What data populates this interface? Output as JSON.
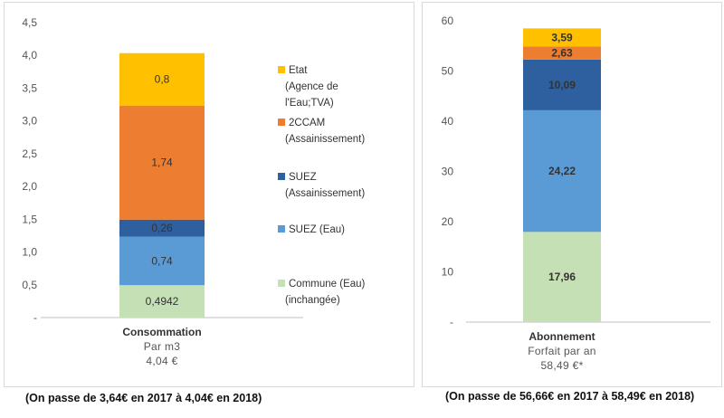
{
  "chart_data": [
    {
      "type": "bar",
      "stacked": true,
      "categories": [
        "Consommation"
      ],
      "category_subtitle": [
        "Par m3",
        "4,04 €"
      ],
      "ylim": [
        0,
        4.5
      ],
      "yticks": [
        "-",
        "0,5",
        "1,0",
        "1,5",
        "2,0",
        "2,5",
        "3,0",
        "3,5",
        "4,0",
        "4,5"
      ],
      "grid": false,
      "legend_position": "right",
      "series": [
        {
          "name": "Commune (Eau) (inchangée)",
          "legend_lines": [
            "Commune (Eau)",
            "(inchangée)"
          ],
          "values": [
            0.4942
          ],
          "label": "0,4942",
          "color": "#c5e0b4"
        },
        {
          "name": "SUEZ (Eau)",
          "legend_lines": [
            "SUEZ (Eau)"
          ],
          "values": [
            0.74
          ],
          "label": "0,74",
          "color": "#5b9bd5"
        },
        {
          "name": "SUEZ (Assainissement)",
          "legend_lines": [
            "SUEZ",
            "(Assainissement)"
          ],
          "values": [
            0.26
          ],
          "label": "0,26",
          "color": "#2e5f9e"
        },
        {
          "name": "2CCAM (Assainissement)",
          "legend_lines": [
            "2CCAM",
            "(Assainissement)"
          ],
          "values": [
            1.74
          ],
          "label": "1,74",
          "color": "#ed7d31"
        },
        {
          "name": "Etat (Agence de l'Eau;TVA)",
          "legend_lines": [
            "Etat",
            "(Agence de",
            "l'Eau;TVA)"
          ],
          "values": [
            0.8
          ],
          "label": "0,8",
          "color": "#ffc000"
        }
      ],
      "footnote": "(On passe de 3,64€ en 2017 à 4,04€ en 2018)"
    },
    {
      "type": "bar",
      "stacked": true,
      "categories": [
        "Abonnement"
      ],
      "category_subtitle": [
        "Forfait par an",
        "58,49 €*"
      ],
      "ylim": [
        0,
        60
      ],
      "yticks": [
        "-",
        "10",
        "20",
        "30",
        "40",
        "50",
        "60"
      ],
      "grid": false,
      "series": [
        {
          "values": [
            17.96
          ],
          "label": "17,96",
          "color": "#c5e0b4"
        },
        {
          "values": [
            24.22
          ],
          "label": "24,22",
          "color": "#5b9bd5"
        },
        {
          "values": [
            10.09
          ],
          "label": "10,09",
          "color": "#2e5f9e"
        },
        {
          "values": [
            2.63
          ],
          "label": "2,63",
          "color": "#ed7d31"
        },
        {
          "values": [
            3.59
          ],
          "label": "3,59",
          "color": "#ffc000"
        }
      ],
      "footnote": "(On passe de 56,66€ en 2017 à 58,49€ en 2018)"
    }
  ]
}
